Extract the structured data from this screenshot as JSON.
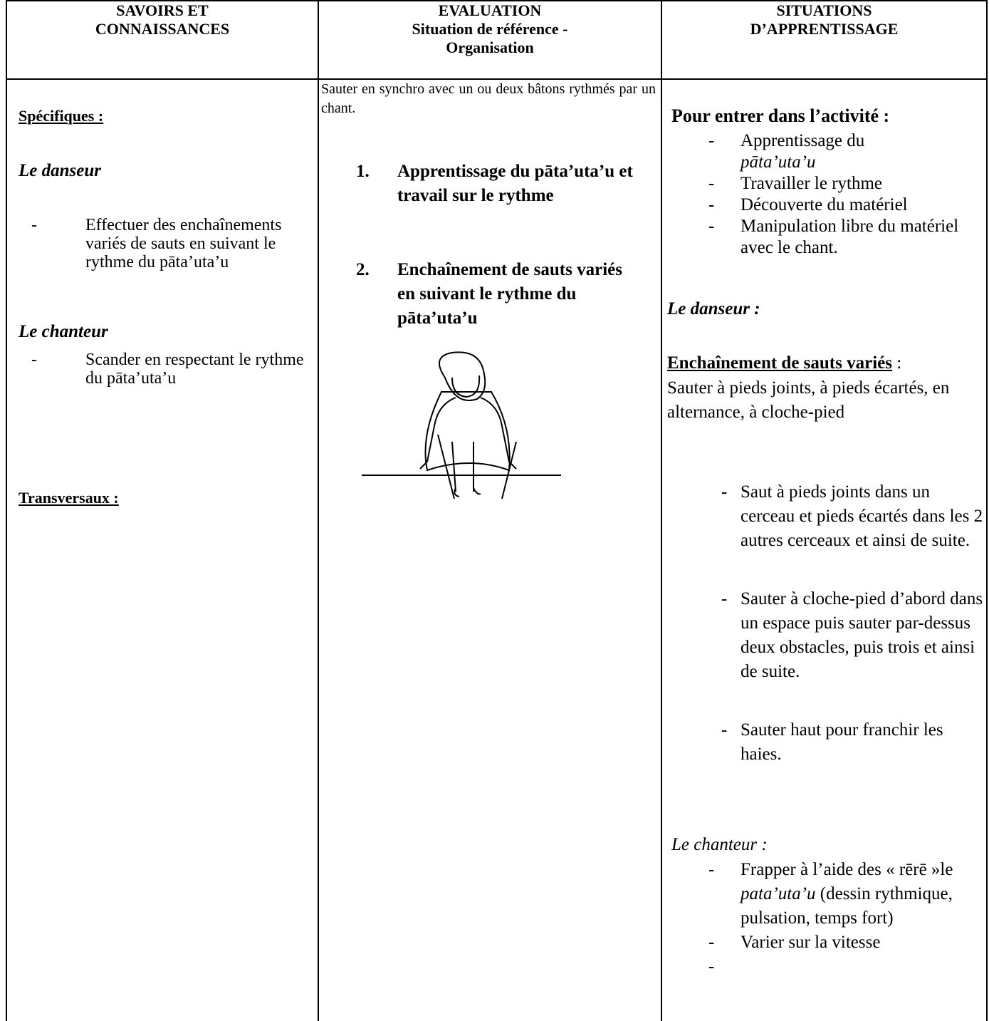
{
  "table": {
    "headers": [
      [
        "SAVOIRS ET",
        "CONNAISSANCES"
      ],
      [
        "EVALUATION",
        "Situation de référence -",
        "Organisation"
      ],
      [
        "SITUATIONS",
        "D’APPRENTISSAGE"
      ]
    ],
    "col1": {
      "specifiques": "Spécifiques :",
      "danseur": "Le danseur",
      "danseur_items": [
        "Effectuer des enchaînements variés de sauts en suivant le rythme du pāta’uta’u"
      ],
      "chanteur": "Le chanteur",
      "chanteur_items": [
        "Scander en respectant le rythme du pāta’uta’u"
      ],
      "transversaux": "Transversaux :"
    },
    "col2": {
      "intro": "Sauter en synchro avec  un ou deux bâtons rythmés par un chant.",
      "steps": [
        {
          "number": "1.",
          "text": "Apprentissage du pāta’uta’u et travail sur le rythme"
        },
        {
          "number": "2.",
          "text": "Enchaînement de sauts variés en suivant le rythme du pāta’uta’u"
        }
      ]
    },
    "col3": {
      "entrer": "Pour entrer dans l’activité :",
      "entrer_items": [
        [
          "Apprentissage du",
          "pāta’uta’u"
        ],
        "Travailler le rythme",
        "Découverte du matériel",
        "Manipulation libre du matériel avec le chant."
      ],
      "danseur": "Le danseur :",
      "enchainement": "Enchaînement de sauts variés",
      "enchainement_suffix": " :",
      "enchainement_text": "Sauter à pieds joints, à pieds écartés, en alternance, à cloche-pied",
      "danseur_items": [
        "Saut à pieds joints dans un cerceau et pieds écartés dans les 2 autres cerceaux et ainsi de suite.",
        "Sauter à cloche-pied d’abord dans un espace puis sauter par-dessus deux obstacles, puis trois et ainsi de suite.",
        "Sauter haut pour franchir les haies."
      ],
      "chanteur": "Le chanteur :",
      "chanteur_items": [
        [
          "Frapper à l’aide des « rērē »le ",
          "pata’uta’u",
          " (dessin rythmique, pulsation, temps fort)"
        ],
        "Varier sur la vitesse"
      ]
    }
  }
}
